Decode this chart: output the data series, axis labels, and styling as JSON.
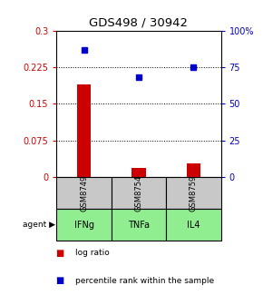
{
  "title": "GDS498 / 30942",
  "samples": [
    "GSM8749",
    "GSM8754",
    "GSM8759"
  ],
  "agents": [
    "IFNg",
    "TNFa",
    "IL4"
  ],
  "log_ratios": [
    0.19,
    0.018,
    0.028
  ],
  "percentile_ranks": [
    87,
    68,
    75
  ],
  "left_ylim": [
    0,
    0.3
  ],
  "right_ylim": [
    0,
    100
  ],
  "left_yticks": [
    0,
    0.075,
    0.15,
    0.225,
    0.3
  ],
  "right_yticks": [
    0,
    25,
    50,
    75,
    100
  ],
  "left_yticklabels": [
    "0",
    "0.075",
    "0.15",
    "0.225",
    "0.3"
  ],
  "right_yticklabels": [
    "0",
    "25",
    "50",
    "75",
    "100%"
  ],
  "bar_color": "#cc0000",
  "dot_color": "#0000cc",
  "sample_box_color": "#c8c8c8",
  "agent_box_color": "#90ee90",
  "title_color": "#000000",
  "left_axis_color": "#cc0000",
  "right_axis_color": "#0000cc",
  "bar_width": 0.25,
  "figwidth": 2.9,
  "figheight": 3.36,
  "dpi": 100
}
